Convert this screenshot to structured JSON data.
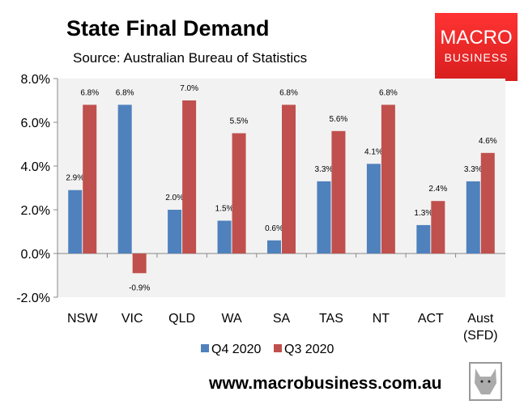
{
  "logo": {
    "line1": "MACRO",
    "line2": "BUSINESS"
  },
  "footer_url": "www.macrobusiness.com.au",
  "chart_data": {
    "type": "bar",
    "title": "State Final Demand",
    "subtitle": "Source: Australian Bureau of Statistics",
    "categories": [
      "NSW",
      "VIC",
      "QLD",
      "WA",
      "SA",
      "TAS",
      "NT",
      "ACT",
      "Aust (SFD)"
    ],
    "series": [
      {
        "name": "Q4 2020",
        "color": "#4f81bd",
        "values": [
          2.9,
          6.8,
          2.0,
          1.5,
          0.6,
          3.3,
          4.1,
          1.3,
          3.3
        ]
      },
      {
        "name": "Q3 2020",
        "color": "#c0504d",
        "values": [
          6.8,
          -0.9,
          7.0,
          5.5,
          6.8,
          5.6,
          6.8,
          2.4,
          4.6
        ]
      }
    ],
    "ylim": [
      -2,
      8
    ],
    "yticks": [
      "-2.0%",
      "0.0%",
      "2.0%",
      "4.0%",
      "6.0%",
      "8.0%"
    ],
    "legend": "bottom",
    "grid": false,
    "plot_background": "#f2f2f2"
  }
}
